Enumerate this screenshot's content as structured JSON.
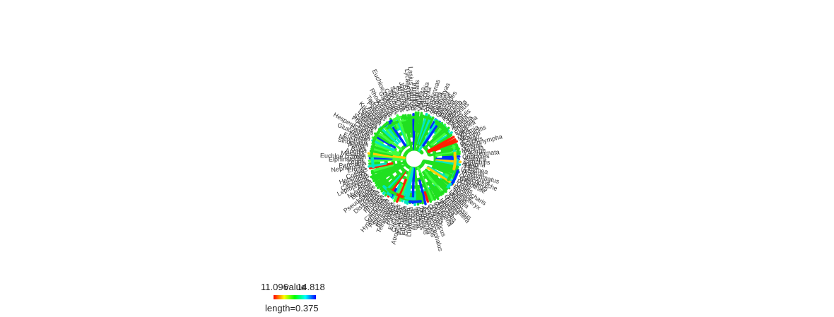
{
  "tips": [
    "Polygonia",
    "Nymphalis",
    "Aglais",
    "Vanessa",
    "Araschnia",
    "Junonia",
    "Precis",
    "Hypolimnas",
    "Anartia",
    "Siproeta",
    "Euphydryas",
    "Melitaea",
    "Chlosyne",
    "Phyciodes",
    "Boloria",
    "Argynnis",
    "Speyeria",
    "Euptoieta",
    "Heliconius",
    "Dryas",
    "Agraulis",
    "Acraea",
    "Danaus",
    "Tirumala",
    "Euploea",
    "Idea",
    "Ithomia",
    "Mechanitis",
    "Morpho",
    "Caligo",
    "Bicyclus",
    "Coenonympha",
    "Erebia",
    "Maniola",
    "Pararge",
    "Lasiommata",
    "Charaxes",
    "Apatura",
    "Limenitis",
    "Adelpha",
    "Biblis",
    "Libythea",
    "Lycaena",
    "Polyommatus",
    "Celastrina",
    "Glaucopsyche",
    "Callophrys",
    "Theclinae",
    "Pieris",
    "Colias",
    "Anthocharis",
    "Euchloe",
    "Gonepteryx",
    "Delias",
    "Leptidea",
    "Papilio",
    "Parnassius",
    "Ornithoptera",
    "Troides",
    "Battus",
    "Iphiclides",
    "Zerynthia",
    "Hesperia",
    "Pyrgus",
    "Erynnis",
    "Thymelicus",
    "Ochlodes",
    "Carterocephalus",
    "Calephelis",
    "Apodemia",
    "Hamearis",
    "Emesis",
    "Riodina",
    "Baronia",
    "Archon",
    "Luehdorfia",
    "Graphium",
    "Eurytides",
    "Pachliopta",
    "Atrophaneura",
    "Cressida",
    "Euryades",
    "Parides",
    "Troidini",
    "Teinopalpus",
    "Bhutanitis",
    "Sericinus",
    "Allancastria",
    "Hypermnestra",
    "Catopsilia",
    "Eurema",
    "Phoebis",
    "Anteos",
    "Dismorphia",
    "Enantia",
    "Pseudopieris",
    "Appias",
    "Belenois",
    "Mylothris",
    "Ascia",
    "Leptophobia",
    "Catasticta",
    "Archonias",
    "Hebomoia",
    "Colotis",
    "Ixias",
    "Eronia",
    "Nepheronia",
    "Pareronia",
    "Zegris",
    "Elphinstonia",
    "Euchloe crameri",
    "Mesapia",
    "Aporia",
    "Baltia",
    "Pontia",
    "Sinopieris",
    "Neophasia",
    "Eucheira",
    "Melete",
    "Glutophrissa",
    "Pereute",
    "Hesperocharis",
    "Cepora",
    "Prioneris",
    "Saletara",
    "Udaiana",
    "Leptosia",
    "Nathalis",
    "Kricogonia",
    "Abaeis",
    "Pyrisitia",
    "Teriocolias",
    "Zerene",
    "Rhodocera",
    "Dercas",
    "Gandaca",
    "Euchloe belemia",
    "Calycopis",
    "Strymon",
    "Satyrium",
    "Favonius",
    "Arhopala",
    "Jalmenus",
    "Eumaeus",
    "Lycaenidae sp",
    "Lasius satullus"
  ],
  "legend": {
    "min_label": "11.096",
    "title": "value",
    "max_label": "14.818",
    "length_label": "length=0.375",
    "colors": [
      "#ff0000",
      "#ffff00",
      "#00ff00",
      "#00ffff",
      "#0000ff"
    ]
  }
}
